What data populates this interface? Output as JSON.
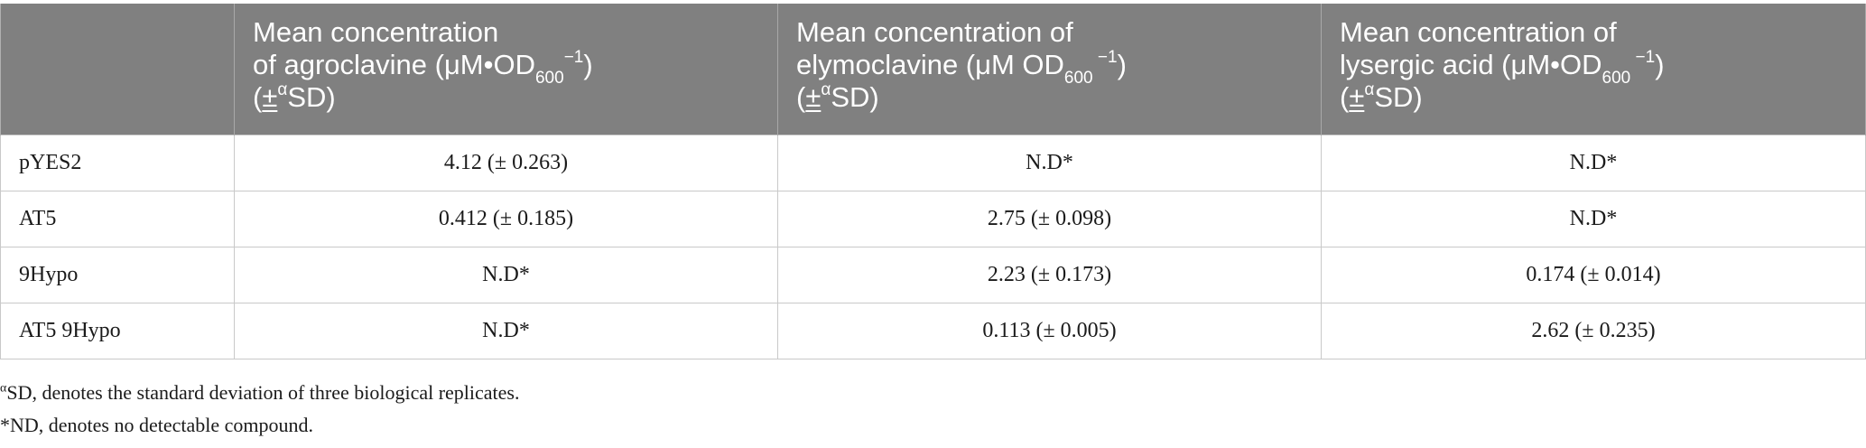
{
  "table": {
    "headers": [
      {
        "lines": []
      },
      {
        "name": "agroclavine",
        "line1": "Mean concentration",
        "line2_pre": "of agroclavine (μM•OD",
        "line2_sub": "600",
        "line2_sup": "−1",
        "line2_post": ")",
        "line3_pm": "±",
        "line3_sup": "α",
        "line3_post": "SD)"
      },
      {
        "name": "elymoclavine",
        "line1": "Mean concentration of",
        "line2_pre": "elymoclavine (μM OD",
        "line2_sub": "600",
        "line2_sup": " −1",
        "line2_post": ")",
        "line3_pm": "±",
        "line3_sup": "α",
        "line3_post": "SD)"
      },
      {
        "name": "lysergic-acid",
        "line1": "Mean concentration of",
        "line2_pre": "lysergic acid (μM•OD",
        "line2_sub": "600",
        "line2_sup": " −1",
        "line2_post": ")",
        "line3_pm": "±",
        "line3_sup": "α",
        "line3_post": "SD)"
      }
    ],
    "rows": [
      {
        "label": "pYES2",
        "cells": [
          "4.12 (± 0.263)",
          "N.D*",
          "N.D*"
        ]
      },
      {
        "label": "AT5",
        "cells": [
          "0.412 (± 0.185)",
          "2.75 (± 0.098)",
          "N.D*"
        ]
      },
      {
        "label": "9Hypo",
        "cells": [
          "N.D*",
          "2.23 (± 0.173)",
          "0.174 (± 0.014)"
        ]
      },
      {
        "label": "AT5 9Hypo",
        "cells": [
          "N.D*",
          "0.113 (± 0.005)",
          "2.62 (± 0.235)"
        ]
      }
    ]
  },
  "footnotes": {
    "alpha_sup": "α",
    "alpha_text": "SD, denotes the standard deviation of three biological replicates.",
    "nd_text": "*ND, denotes no detectable compound."
  },
  "colors": {
    "header_bg": "#808080",
    "header_text": "#ffffff",
    "grid_line": "#c9c9c9"
  }
}
